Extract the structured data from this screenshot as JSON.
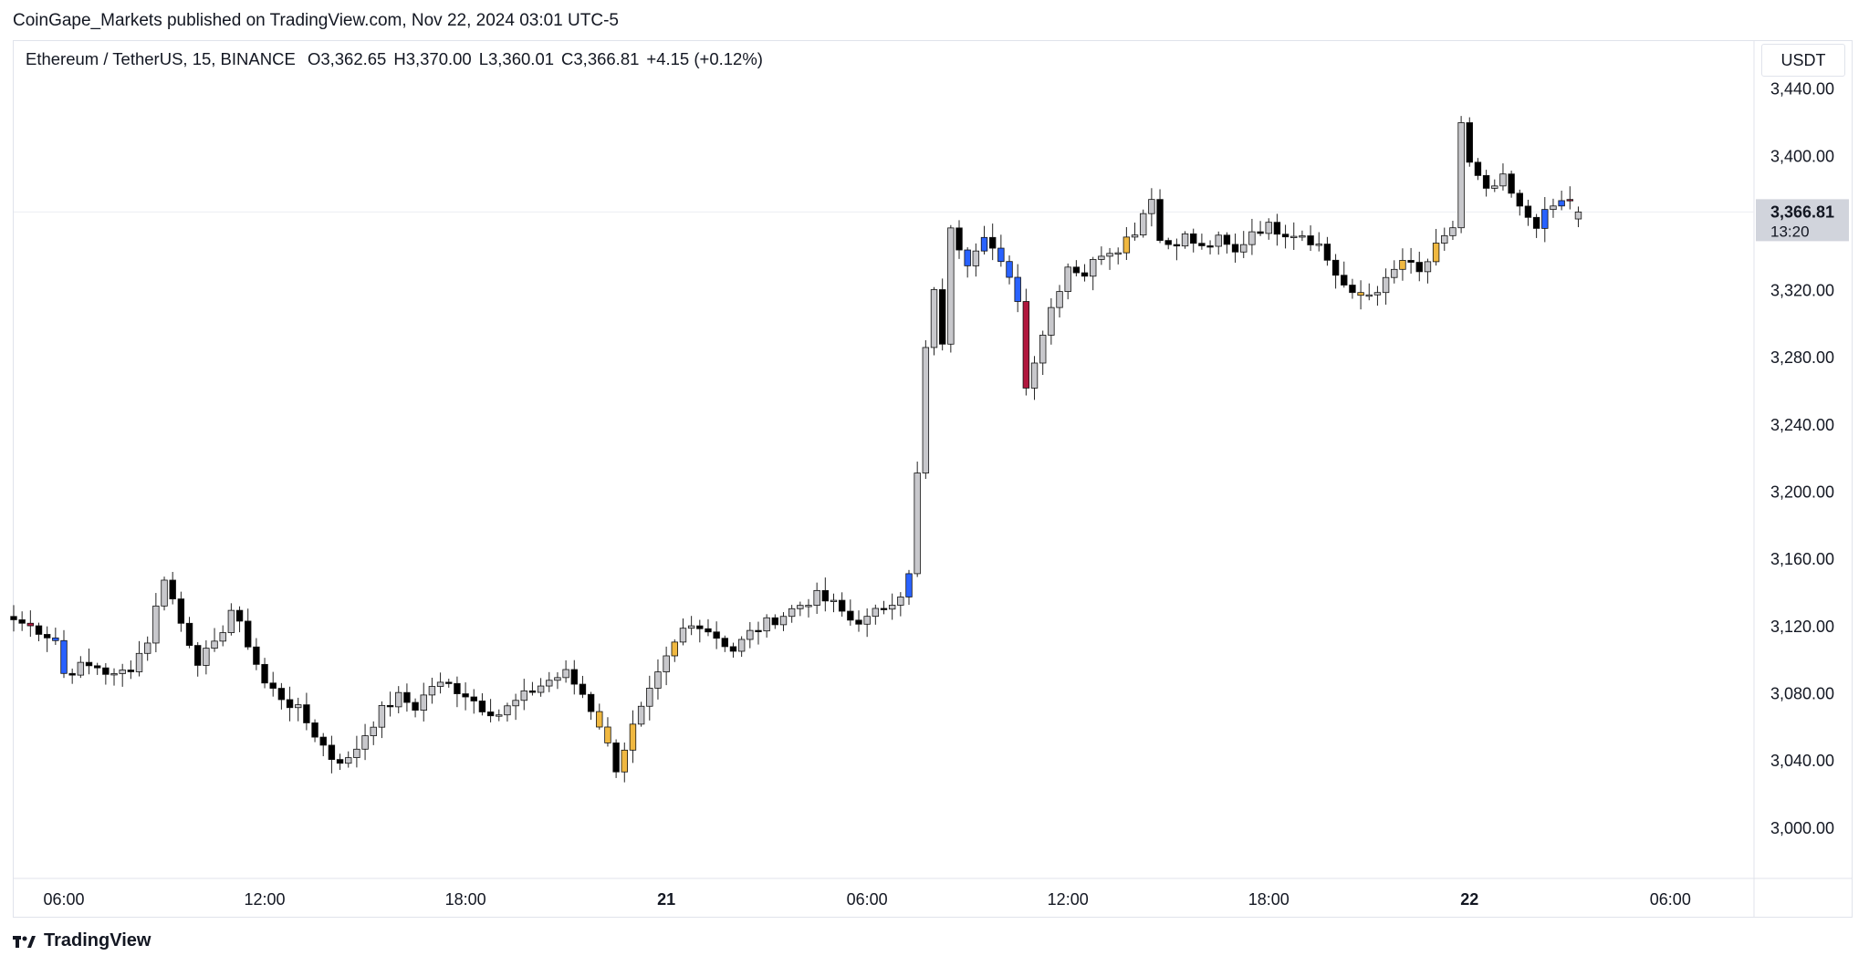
{
  "header": {
    "published": "CoinGape_Markets published on TradingView.com, Nov 22, 2024 03:01 UTC-5"
  },
  "legend": {
    "symbol": "Ethereum / TetherUS, 15, BINANCE",
    "open": "O3,362.65",
    "high": "H3,370.00",
    "low": "L3,360.01",
    "close": "C3,366.81",
    "change": "+4.15 (+0.12%)"
  },
  "currency": "USDT",
  "last_price": {
    "value": "3,366.81",
    "countdown": "13:20"
  },
  "footer": {
    "brand": "TradingView",
    "logo_icon": "tradingview-logo-icon"
  },
  "colors": {
    "up": "#c8c8cc",
    "down": "#000000",
    "blue": "#2962ff",
    "red": "#b0173d",
    "gold": "#f0b840"
  },
  "chart_data": {
    "type": "candlestick",
    "symbol": "ETHUSDT",
    "interval": "15",
    "ylim": [
      2970,
      3455
    ],
    "y_ticks": [
      3000,
      3040,
      3080,
      3120,
      3160,
      3200,
      3240,
      3280,
      3320,
      3360,
      3400,
      3440
    ],
    "y_tick_labels": [
      "3,000.00",
      "3,040.00",
      "3,080.00",
      "3,120.00",
      "3,160.00",
      "3,200.00",
      "3,240.00",
      "3,280.00",
      "3,320.00",
      "3,360.00",
      "3,400.00",
      "3,440.00"
    ],
    "x_ticks": [
      {
        "label": "06:00",
        "hours": 0
      },
      {
        "label": "12:00",
        "hours": 6
      },
      {
        "label": "18:00",
        "hours": 12
      },
      {
        "label": "21",
        "hours": 18,
        "bold": true
      },
      {
        "label": "06:00",
        "hours": 24
      },
      {
        "label": "12:00",
        "hours": 30
      },
      {
        "label": "18:00",
        "hours": 36
      },
      {
        "label": "22",
        "hours": 42,
        "bold": true
      },
      {
        "label": "06:00",
        "hours": 48
      }
    ],
    "x_range_hours": [
      -1.5,
      50.5
    ],
    "candle_step_hours": 0.25,
    "first_candle_hours": -1.5,
    "anchors": [
      [
        -1.5,
        3124
      ],
      [
        -0.75,
        3118
      ],
      [
        -0.25,
        3112
      ],
      [
        0.0,
        3092
      ],
      [
        0.5,
        3096
      ],
      [
        1.0,
        3096
      ],
      [
        1.5,
        3090
      ],
      [
        2.0,
        3096
      ],
      [
        2.5,
        3112
      ],
      [
        3.0,
        3150
      ],
      [
        3.5,
        3122
      ],
      [
        4.0,
        3100
      ],
      [
        4.5,
        3108
      ],
      [
        5.0,
        3130
      ],
      [
        5.5,
        3110
      ],
      [
        6.0,
        3086
      ],
      [
        6.5,
        3078
      ],
      [
        7.0,
        3070
      ],
      [
        7.5,
        3056
      ],
      [
        8.0,
        3042
      ],
      [
        8.5,
        3040
      ],
      [
        9.0,
        3056
      ],
      [
        9.5,
        3070
      ],
      [
        10.0,
        3078
      ],
      [
        10.5,
        3072
      ],
      [
        11.0,
        3085
      ],
      [
        11.5,
        3085
      ],
      [
        12.0,
        3080
      ],
      [
        12.5,
        3072
      ],
      [
        13.0,
        3068
      ],
      [
        13.5,
        3075
      ],
      [
        14.0,
        3082
      ],
      [
        14.5,
        3088
      ],
      [
        15.0,
        3092
      ],
      [
        15.5,
        3080
      ],
      [
        16.0,
        3062
      ],
      [
        16.5,
        3036
      ],
      [
        17.0,
        3060
      ],
      [
        17.5,
        3080
      ],
      [
        18.0,
        3100
      ],
      [
        18.5,
        3118
      ],
      [
        19.0,
        3122
      ],
      [
        19.5,
        3114
      ],
      [
        20.0,
        3106
      ],
      [
        20.5,
        3116
      ],
      [
        21.0,
        3122
      ],
      [
        21.5,
        3127
      ],
      [
        22.0,
        3133
      ],
      [
        22.5,
        3138
      ],
      [
        23.0,
        3133
      ],
      [
        23.5,
        3124
      ],
      [
        24.0,
        3124
      ],
      [
        24.5,
        3132
      ],
      [
        25.0,
        3140
      ],
      [
        25.25,
        3150
      ],
      [
        25.5,
        3210
      ],
      [
        25.75,
        3285
      ],
      [
        26.0,
        3318
      ],
      [
        26.25,
        3290
      ],
      [
        26.5,
        3355
      ],
      [
        27.0,
        3338
      ],
      [
        27.5,
        3355
      ],
      [
        28.0,
        3335
      ],
      [
        28.5,
        3316
      ],
      [
        28.75,
        3262
      ],
      [
        29.0,
        3280
      ],
      [
        29.5,
        3310
      ],
      [
        30.0,
        3335
      ],
      [
        30.5,
        3330
      ],
      [
        31.0,
        3343
      ],
      [
        31.5,
        3346
      ],
      [
        32.0,
        3356
      ],
      [
        32.5,
        3377
      ],
      [
        32.75,
        3350
      ],
      [
        33.0,
        3348
      ],
      [
        33.5,
        3352
      ],
      [
        34.0,
        3345
      ],
      [
        34.5,
        3350
      ],
      [
        35.0,
        3342
      ],
      [
        35.5,
        3356
      ],
      [
        36.0,
        3358
      ],
      [
        36.5,
        3355
      ],
      [
        37.0,
        3354
      ],
      [
        37.5,
        3347
      ],
      [
        38.0,
        3330
      ],
      [
        38.5,
        3316
      ],
      [
        39.0,
        3318
      ],
      [
        39.5,
        3325
      ],
      [
        40.0,
        3338
      ],
      [
        40.5,
        3330
      ],
      [
        41.0,
        3345
      ],
      [
        41.25,
        3350
      ],
      [
        41.5,
        3358
      ],
      [
        41.75,
        3420
      ],
      [
        42.0,
        3395
      ],
      [
        42.5,
        3378
      ],
      [
        43.0,
        3386
      ],
      [
        43.5,
        3368
      ],
      [
        44.0,
        3360
      ],
      [
        44.5,
        3370
      ],
      [
        45.0,
        3375
      ],
      [
        45.25,
        3366.81
      ]
    ],
    "special_candles": {
      "blue": [
        5,
        6,
        107,
        114,
        116,
        118,
        119,
        120,
        183,
        185
      ],
      "red": [
        2,
        121,
        186,
        195,
        203
      ],
      "gold": [
        70,
        71,
        73,
        74,
        79,
        133,
        161,
        166,
        170
      ]
    },
    "annotations": [
      {
        "text": "3,366.81",
        "kind": "last-price-label"
      },
      {
        "text": "13:20",
        "kind": "countdown"
      }
    ]
  }
}
